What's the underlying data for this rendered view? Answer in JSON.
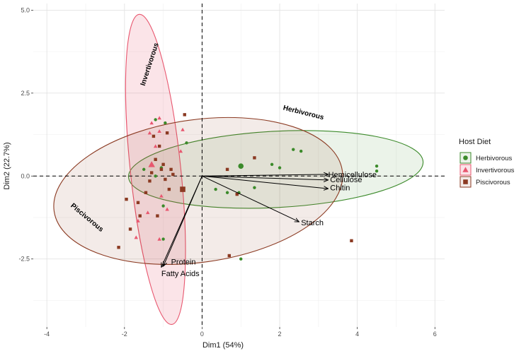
{
  "chart_data": {
    "type": "scatter",
    "xlabel": "Dim1 (54%)",
    "ylabel": "Dim2 (22.7%)",
    "xlim": [
      -4.35,
      6.25
    ],
    "ylim": [
      -4.55,
      5.2
    ],
    "x_ticks": [
      -4,
      -2,
      0,
      2,
      4,
      6
    ],
    "y_ticks": [
      -2.5,
      0.0,
      2.5,
      5.0
    ],
    "x_tick_labels": [
      "-4",
      "-2",
      "0",
      "2",
      "4",
      "6"
    ],
    "y_tick_labels": [
      "-2.5",
      "0.0",
      "2.5",
      "5.0"
    ],
    "grid": true,
    "reference_lines": {
      "x": 0,
      "y": 0,
      "style": "dashed"
    },
    "legend": {
      "title": "Host Diet",
      "position": "right",
      "entries": [
        {
          "name": "Herbivorous",
          "color": "#3b8a2a",
          "shape": "circle"
        },
        {
          "name": "Invertivorous",
          "color": "#e8576f",
          "shape": "triangle"
        },
        {
          "name": "Piscivorous",
          "color": "#8b3a22",
          "shape": "square"
        }
      ]
    },
    "series": [
      {
        "name": "Herbivorous",
        "color": "#3b8a2a",
        "shape": "circle",
        "points": [
          [
            -1.2,
            1.7
          ],
          [
            -0.95,
            1.6
          ],
          [
            -0.4,
            1.0
          ],
          [
            -1.5,
            0.2
          ],
          [
            -1.05,
            0.25
          ],
          [
            -1.2,
            0.0
          ],
          [
            -1.0,
            -0.9
          ],
          [
            -1.0,
            -1.9
          ],
          [
            0.35,
            -0.4
          ],
          [
            0.65,
            -0.5
          ],
          [
            0.95,
            -0.5
          ],
          [
            1.35,
            -0.35
          ],
          [
            1.8,
            0.35
          ],
          [
            2.35,
            0.8
          ],
          [
            2.55,
            0.75
          ],
          [
            2.0,
            0.25
          ],
          [
            4.5,
            0.3
          ],
          [
            4.5,
            0.15
          ],
          [
            1.0,
            -2.5
          ]
        ],
        "centroid": [
          1.0,
          0.3
        ]
      },
      {
        "name": "Invertivorous",
        "color": "#e8576f",
        "shape": "triangle",
        "points": [
          [
            -1.3,
            1.6
          ],
          [
            -1.1,
            1.75
          ],
          [
            -0.5,
            1.4
          ],
          [
            -1.35,
            1.3
          ],
          [
            -1.1,
            1.35
          ],
          [
            -0.55,
            0.75
          ],
          [
            -1.2,
            0.9
          ],
          [
            -1.05,
            -0.6
          ],
          [
            -1.4,
            -1.1
          ],
          [
            -1.65,
            -1.35
          ],
          [
            -1.7,
            -1.85
          ],
          [
            -1.1,
            -1.9
          ],
          [
            -0.9,
            -1.0
          ]
        ],
        "centroid": [
          -1.3,
          0.35
        ]
      },
      {
        "name": "Piscivorous",
        "color": "#8b3a22",
        "shape": "square",
        "points": [
          [
            -0.45,
            1.85
          ],
          [
            -1.25,
            1.2
          ],
          [
            -1.1,
            0.9
          ],
          [
            -0.9,
            1.3
          ],
          [
            -1.2,
            0.5
          ],
          [
            -1.0,
            0.35
          ],
          [
            -1.05,
            0.2
          ],
          [
            -1.3,
            0.1
          ],
          [
            -0.8,
            0.2
          ],
          [
            -0.75,
            0.05
          ],
          [
            -0.95,
            -0.1
          ],
          [
            -1.35,
            -0.15
          ],
          [
            -1.65,
            -0.8
          ],
          [
            -1.95,
            -0.7
          ],
          [
            -1.45,
            -0.5
          ],
          [
            -0.85,
            -0.4
          ],
          [
            -1.6,
            -1.2
          ],
          [
            -1.85,
            -1.6
          ],
          [
            -2.15,
            -2.15
          ],
          [
            -1.15,
            -1.2
          ],
          [
            0.65,
            0.2
          ],
          [
            1.35,
            0.55
          ],
          [
            0.9,
            -0.55
          ],
          [
            0.7,
            -2.4
          ],
          [
            3.85,
            -1.95
          ]
        ],
        "centroid": [
          -0.5,
          -0.4
        ]
      }
    ],
    "ellipses": [
      {
        "name": "Herbivorous",
        "color": "#3b8a2a",
        "cx": 1.9,
        "cy": 0.2,
        "rx": 3.8,
        "ry": 1.15,
        "angle_deg": 3
      },
      {
        "name": "Invertivorous",
        "color": "#e8576f",
        "cx": -1.2,
        "cy": 0.2,
        "rx": 0.65,
        "ry": 4.7,
        "angle_deg": 6
      },
      {
        "name": "Piscivorous",
        "color": "#8b3a22",
        "cx": -0.1,
        "cy": -0.45,
        "rx": 3.75,
        "ry": 2.15,
        "angle_deg": 8
      }
    ],
    "group_labels": [
      {
        "text": "Herbivorous",
        "x": 2.6,
        "y": 1.85,
        "rotate_deg": 14
      },
      {
        "text": "Invertivorous",
        "x": -1.3,
        "y": 3.35,
        "rotate_deg": -72
      },
      {
        "text": "Piscivorous",
        "x": -3.0,
        "y": -1.3,
        "rotate_deg": 40
      }
    ],
    "variables": [
      {
        "name": "Hemicellulose",
        "x": 3.25,
        "y": 0.05,
        "label_x": 3.25,
        "label_y": 0.05,
        "anchor": "start"
      },
      {
        "name": "Cellulose",
        "x": 3.25,
        "y": -0.12,
        "label_x": 3.3,
        "label_y": -0.1,
        "anchor": "start"
      },
      {
        "name": "Chitin",
        "x": 3.25,
        "y": -0.38,
        "label_x": 3.3,
        "label_y": -0.35,
        "anchor": "start"
      },
      {
        "name": "Starch",
        "x": 2.5,
        "y": -1.38,
        "label_x": 2.55,
        "label_y": -1.4,
        "anchor": "start"
      },
      {
        "name": "Protein",
        "x": -1.0,
        "y": -2.72,
        "label_x": -0.8,
        "label_y": -2.58,
        "anchor": "start"
      },
      {
        "name": "Fatty Acids",
        "x": -1.05,
        "y": -2.75,
        "label_x": -1.05,
        "label_y": -2.93,
        "anchor": "start"
      }
    ]
  }
}
